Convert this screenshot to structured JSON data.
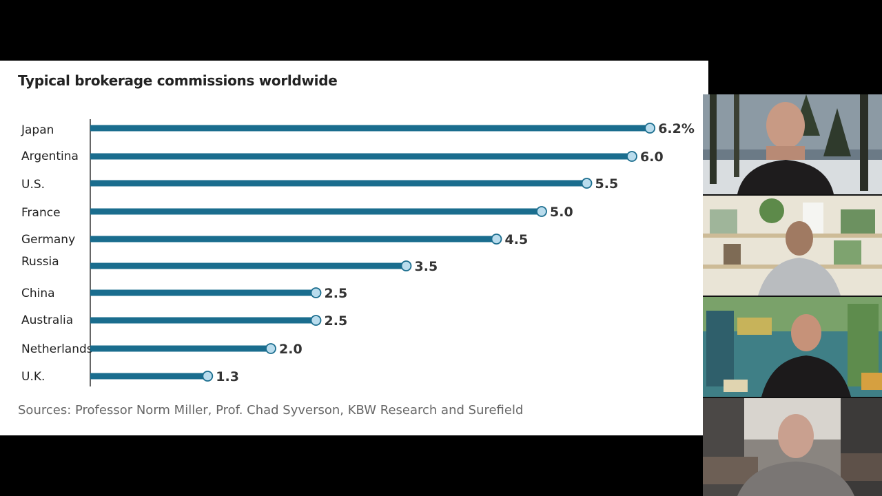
{
  "chart_data": {
    "type": "bar",
    "title": "Typical brokerage commissions worldwide",
    "source": "Sources: Professor Norm Miller, Prof. Chad Syverson, KBW Research and Surefield",
    "categories": [
      "Japan",
      "Argentina",
      "U.S.",
      "France",
      "Germany",
      "Russia",
      "China",
      "Australia",
      "Netherlands",
      "U.K."
    ],
    "values": [
      6.2,
      6.0,
      5.5,
      5.0,
      4.5,
      3.5,
      2.5,
      2.5,
      2.0,
      1.3
    ],
    "value_labels": [
      "6.2%",
      "6.0",
      "5.5",
      "5.0",
      "4.5",
      "3.5",
      "2.5",
      "2.5",
      "2.0",
      "1.3"
    ],
    "orientation": "horizontal",
    "grid": false,
    "bar_color": "#1a6d8e",
    "marker_fill": "#b9dced"
  }
}
